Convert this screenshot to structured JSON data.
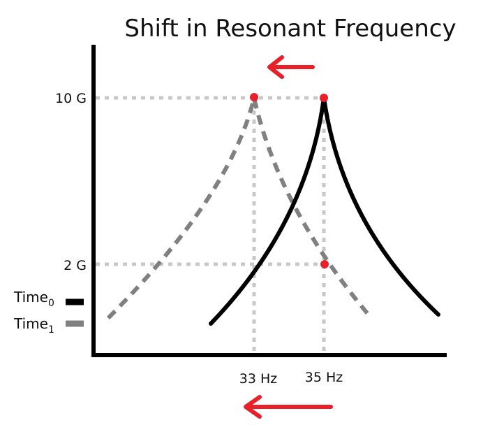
{
  "title": "Shift in Resonant Frequency",
  "y_ticks": {
    "high": "10 G",
    "low": "2 G"
  },
  "x_ticks": {
    "f1": "33 Hz",
    "f0": "35 Hz"
  },
  "legend": {
    "time0": {
      "base": "Time",
      "sub": "0"
    },
    "time1": {
      "base": "Time",
      "sub": "1"
    }
  },
  "colors": {
    "time0_curve": "#000000",
    "time1_curve": "#808080",
    "guide": "#c8c8c8",
    "marker": "#e8202a",
    "arrow": "#e8202a"
  },
  "annotations": {
    "shift_arrows": "left",
    "markers": [
      "peak of Time1 at 33 Hz, 10 G",
      "peak of Time0 at 35 Hz, 10 G",
      "Time1 at 35 Hz, 2 G"
    ]
  }
}
